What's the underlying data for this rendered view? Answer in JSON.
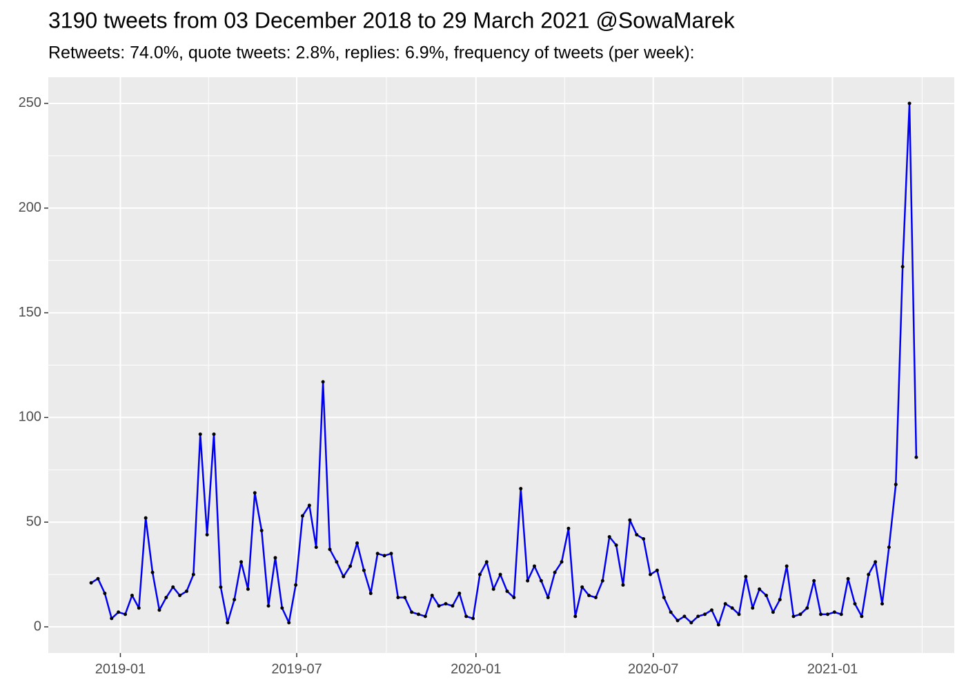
{
  "chart_data": {
    "type": "line",
    "title": "3190 tweets from 03 December 2018 to 29 March 2021 @SowaMarek",
    "subtitle": "Retweets: 74.0%, quote tweets: 2.8%, replies: 6.9%, frequency of tweets (per week):",
    "x": [
      "2018-12-02",
      "2018-12-09",
      "2018-12-16",
      "2018-12-23",
      "2018-12-30",
      "2019-01-06",
      "2019-01-13",
      "2019-01-20",
      "2019-01-27",
      "2019-02-03",
      "2019-02-10",
      "2019-02-17",
      "2019-02-24",
      "2019-03-03",
      "2019-03-10",
      "2019-03-17",
      "2019-03-24",
      "2019-03-31",
      "2019-04-07",
      "2019-04-14",
      "2019-04-21",
      "2019-04-28",
      "2019-05-05",
      "2019-05-12",
      "2019-05-19",
      "2019-05-26",
      "2019-06-02",
      "2019-06-09",
      "2019-06-16",
      "2019-06-23",
      "2019-06-30",
      "2019-07-07",
      "2019-07-14",
      "2019-07-21",
      "2019-07-28",
      "2019-08-04",
      "2019-08-11",
      "2019-08-18",
      "2019-08-25",
      "2019-09-01",
      "2019-09-08",
      "2019-09-15",
      "2019-09-22",
      "2019-09-29",
      "2019-10-06",
      "2019-10-13",
      "2019-10-20",
      "2019-10-27",
      "2019-11-03",
      "2019-11-10",
      "2019-11-17",
      "2019-11-24",
      "2019-12-01",
      "2019-12-08",
      "2019-12-15",
      "2019-12-22",
      "2019-12-29",
      "2020-01-05",
      "2020-01-12",
      "2020-01-19",
      "2020-01-26",
      "2020-02-02",
      "2020-02-09",
      "2020-02-16",
      "2020-02-23",
      "2020-03-01",
      "2020-03-08",
      "2020-03-15",
      "2020-03-22",
      "2020-03-29",
      "2020-04-05",
      "2020-04-12",
      "2020-04-19",
      "2020-04-26",
      "2020-05-03",
      "2020-05-10",
      "2020-05-17",
      "2020-05-24",
      "2020-05-31",
      "2020-06-07",
      "2020-06-14",
      "2020-06-21",
      "2020-06-28",
      "2020-07-05",
      "2020-07-12",
      "2020-07-19",
      "2020-07-26",
      "2020-08-02",
      "2020-08-09",
      "2020-08-16",
      "2020-08-23",
      "2020-08-30",
      "2020-09-06",
      "2020-09-13",
      "2020-09-20",
      "2020-09-27",
      "2020-10-04",
      "2020-10-11",
      "2020-10-18",
      "2020-10-25",
      "2020-11-01",
      "2020-11-08",
      "2020-11-15",
      "2020-11-22",
      "2020-11-29",
      "2020-12-06",
      "2020-12-13",
      "2020-12-20",
      "2020-12-27",
      "2021-01-03",
      "2021-01-10",
      "2021-01-17",
      "2021-01-24",
      "2021-01-31",
      "2021-02-07",
      "2021-02-14",
      "2021-02-21",
      "2021-02-28",
      "2021-03-07",
      "2021-03-14",
      "2021-03-21",
      "2021-03-28"
    ],
    "series": [
      {
        "color": "#0000ee",
        "values": [
          21,
          23,
          16,
          4,
          7,
          6,
          15,
          9,
          52,
          26,
          8,
          14,
          19,
          15,
          17,
          25,
          92,
          44,
          92,
          19,
          2,
          13,
          31,
          18,
          64,
          46,
          10,
          33,
          9,
          2,
          20,
          53,
          58,
          38,
          117,
          37,
          31,
          24,
          29,
          40,
          27,
          16,
          35,
          34,
          35,
          14,
          14,
          7,
          6,
          5,
          15,
          10,
          11,
          10,
          16,
          5,
          4,
          25,
          31,
          18,
          25,
          17,
          14,
          66,
          22,
          29,
          22,
          14,
          26,
          31,
          47,
          5,
          19,
          15,
          14,
          22,
          43,
          39,
          20,
          51,
          44,
          42,
          25,
          27,
          14,
          7,
          3,
          5,
          2,
          5,
          6,
          8,
          1,
          11,
          9,
          6,
          24,
          9,
          18,
          15,
          7,
          13,
          29,
          5,
          6,
          9,
          22,
          6,
          6,
          7,
          6,
          23,
          11,
          5,
          25,
          31,
          11,
          38,
          68,
          172,
          250,
          81
        ]
      }
    ],
    "point_color": "#000000",
    "xlim": [
      "2018-10-19",
      "2021-05-06"
    ],
    "xticks": [
      {
        "value": "2019-01-01",
        "label": "2019-01"
      },
      {
        "value": "2019-07-01",
        "label": "2019-07"
      },
      {
        "value": "2020-01-01",
        "label": "2020-01"
      },
      {
        "value": "2020-07-01",
        "label": "2020-07"
      },
      {
        "value": "2021-01-01",
        "label": "2021-01"
      }
    ],
    "ylim": [
      -12.5,
      262.5
    ],
    "yticks": [
      0,
      50,
      100,
      150,
      200,
      250
    ],
    "grid": true
  }
}
